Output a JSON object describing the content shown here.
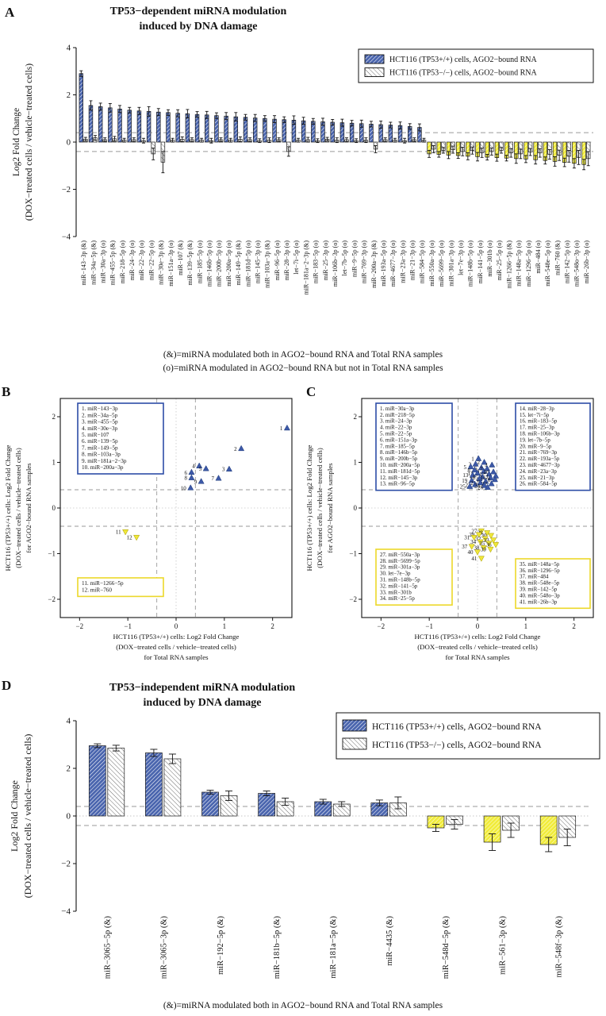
{
  "panels": {
    "a": "A",
    "b": "B",
    "c": "C",
    "d": "D"
  },
  "colors": {
    "blue": "#4a65ae",
    "yellow": "#f1ec3c",
    "white": "#ffffff",
    "hatch_white_line": "#6e6e6e",
    "box_blue": "#2d4da6",
    "box_yellow": "#ecd82a",
    "dash": "#9a9a9a",
    "dot": "#c6c6c6",
    "edge": "#1a1a1a",
    "marker_up": "#3d59a8",
    "marker_down": "#efe73a"
  },
  "panel_a": {
    "title_lines": [
      "TP53−dependent miRNA modulation",
      "induced by DNA damage"
    ],
    "ylabel_lines": [
      "Log2 Fold Change",
      "(DOX−treated cells / vehicle−treated cells)"
    ],
    "legend": [
      "HCT116 (TP53+/+) cells, AGO2−bound RNA",
      "HCT116 (TP53−/−) cells, AGO2−bound RNA"
    ],
    "footnotes": [
      "(&)=miRNA modulated both in AGO2−bound RNA and Total RNA samples",
      "(o)=miRNA modulated in AGO2−bound RNA but not in Total RNA samples"
    ],
    "yticks": [
      -4,
      -2,
      0,
      2,
      4
    ]
  },
  "panel_b": {
    "xlabel_lines": [
      "HCT116 (TP53+/+) cells: Log2 Fold Change",
      "(DOX−treated cells / vehicle−treated cells)",
      "for Total RNA samples"
    ],
    "ylabel_lines": [
      "HCT116 (TP53+/+) cells: Log2 Fold Change",
      "(DOX−treated cells / vehicle−treated cells)",
      "for AGO2−bound RNA samples"
    ]
  },
  "panel_c": {
    "xlabel_lines": [
      "HCT116 (TP53+/+) cells: Log2 Fold Change",
      "(DOX−treated cells / vehicle−treated cells)",
      "for Total RNA samples"
    ],
    "ylabel_lines": [
      "HCT116 (TP53+/+) cells: Log2 Fold Change",
      "(DOX−treated cells / vehicle−treated cells)",
      "for AGO2−bound RNA samples"
    ]
  },
  "panel_d": {
    "title_lines": [
      "TP53−independent miRNA modulation",
      "induced by DNA damage"
    ],
    "ylabel_lines": [
      "Log2 Fold Change",
      "(DOX−treated cells / vehicle−treated cells)"
    ],
    "legend": [
      "HCT116 (TP53+/+) cells, AGO2−bound RNA",
      "HCT116 (TP53−/−) cells, AGO2−bound RNA"
    ],
    "footnote": "(&)=miRNA modulated both in AGO2−bound RNA and Total RNA samples",
    "yticks": [
      -4,
      -2,
      0,
      2,
      4
    ]
  },
  "chart_data": [
    {
      "panel": "A",
      "type": "bar",
      "title": "TP53−dependent miRNA modulation induced by DNA damage",
      "ylabel": "Log2 Fold Change (DOX−treated cells / vehicle−treated cells)",
      "ylim": [
        -4,
        4
      ],
      "yticks": [
        -4,
        -2,
        0,
        2,
        4
      ],
      "thresholds": [
        0.4,
        -0.4
      ],
      "categories": [
        "miR−143−3p (&)",
        "miR−34a−5p (&)",
        "miR−30a−3p (o)",
        "miR−455−5p (&)",
        "miR−218−5p (o)",
        "miR−24−3p (o)",
        "miR−22−3p (o)",
        "miR−22−5p (o)",
        "miR−30e−3p (&)",
        "miR−151a−3p (o)",
        "miR−107 (&)",
        "miR−139−5p (&)",
        "miR−185−5p (o)",
        "miR−146b−5p (o)",
        "miR−200b−5p (o)",
        "miR−200a−5p (o)",
        "miR−149−5p (&)",
        "miR−181d−5p (o)",
        "miR−145−3p (o)",
        "miR−103a−3p (&)",
        "miR−96−5p (o)",
        "miR−28−3p (o)",
        "let−7i−5p (o)",
        "miR−181a−2−3p (&)",
        "miR−183−5p (o)",
        "miR−25−3p (o)",
        "miR−106b−3p (o)",
        "let−7b−5p (o)",
        "miR−9−5p (o)",
        "miR−769−3p (o)",
        "miR−200a−3p (&)",
        "miR−193a−5p (o)",
        "miR−4677−3p (o)",
        "miR−23a−3p (o)",
        "miR−21−3p (o)",
        "miR−584−5p (o)",
        "miR−550a−3p (o)",
        "miR−5699−5p (o)",
        "miR−301a−3p (o)",
        "let−7e−3p (o)",
        "miR−148b−5p (o)",
        "miR−141−5p (o)",
        "miR−301b (o)",
        "miR−25−5p (o)",
        "miR−1266−5p (&)",
        "miR−148a−5p (o)",
        "miR−1296−5p (o)",
        "miR−484 (o)",
        "miR−548e−5p (o)",
        "miR−760 (&)",
        "miR−142−5p (o)",
        "miR−548o−3p (o)",
        "miR−26b−3p (o)"
      ],
      "series": [
        {
          "name": "HCT116 (TP53+/+) cells, AGO2−bound RNA",
          "values": [
            2.9,
            1.55,
            1.5,
            1.45,
            1.4,
            1.35,
            1.32,
            1.3,
            1.27,
            1.25,
            1.22,
            1.2,
            1.17,
            1.15,
            1.12,
            1.1,
            1.07,
            1.05,
            1.02,
            1.0,
            0.97,
            0.95,
            0.93,
            0.9,
            0.88,
            0.86,
            0.84,
            0.82,
            0.8,
            0.78,
            0.76,
            0.74,
            0.72,
            0.7,
            0.66,
            0.62,
            -0.5,
            -0.52,
            -0.55,
            -0.57,
            -0.6,
            -0.62,
            -0.64,
            -0.66,
            -0.68,
            -0.7,
            -0.72,
            -0.75,
            -0.78,
            -0.82,
            -0.86,
            -0.9,
            -0.95
          ],
          "errors": [
            0.12,
            0.2,
            0.15,
            0.18,
            0.15,
            0.12,
            0.15,
            0.2,
            0.15,
            0.12,
            0.15,
            0.18,
            0.12,
            0.15,
            0.12,
            0.15,
            0.18,
            0.12,
            0.15,
            0.12,
            0.15,
            0.12,
            0.18,
            0.15,
            0.12,
            0.15,
            0.12,
            0.15,
            0.12,
            0.15,
            0.12,
            0.15,
            0.12,
            0.15,
            0.12,
            0.15,
            0.15,
            0.12,
            0.15,
            0.12,
            0.15,
            0.18,
            0.12,
            0.15,
            0.12,
            0.2,
            0.15,
            0.18,
            0.15,
            0.2,
            0.18,
            0.2,
            0.22
          ]
        },
        {
          "name": "HCT116 (TP53−/−) cells, AGO2−bound RNA",
          "values": [
            0.12,
            0.18,
            0.1,
            0.14,
            0.08,
            0.1,
            0.06,
            -0.5,
            -0.85,
            0.08,
            0.12,
            0.1,
            0.08,
            0.06,
            0.1,
            0.08,
            0.12,
            0.1,
            0.06,
            0.08,
            0.1,
            -0.4,
            0.08,
            0.1,
            0.06,
            0.12,
            0.08,
            0.1,
            0.06,
            0.08,
            -0.3,
            0.1,
            0.08,
            0.06,
            0.1,
            0.08,
            -0.3,
            -0.35,
            -0.32,
            -0.4,
            -0.36,
            -0.45,
            -0.4,
            -0.35,
            -0.46,
            -0.5,
            -0.42,
            -0.46,
            -0.52,
            -0.56,
            -0.6,
            -0.65,
            -0.7
          ],
          "errors": [
            0.08,
            0.1,
            0.08,
            0.1,
            0.08,
            0.08,
            0.1,
            0.25,
            0.45,
            0.08,
            0.1,
            0.08,
            0.08,
            0.1,
            0.08,
            0.08,
            0.1,
            0.08,
            0.08,
            0.1,
            0.08,
            0.2,
            0.08,
            0.1,
            0.08,
            0.08,
            0.1,
            0.08,
            0.08,
            0.1,
            0.15,
            0.08,
            0.08,
            0.1,
            0.08,
            0.08,
            0.15,
            0.12,
            0.15,
            0.18,
            0.15,
            0.2,
            0.15,
            0.12,
            0.18,
            0.2,
            0.15,
            0.18,
            0.2,
            0.22,
            0.25,
            0.3,
            0.3
          ]
        }
      ]
    },
    {
      "panel": "B",
      "type": "scatter",
      "xlabel": "HCT116 (TP53+/+) cells: Log2 Fold Change (DOX−treated cells / vehicle−treated cells) for Total RNA samples",
      "ylabel": "HCT116 (TP53+/+) cells: Log2 Fold Change (DOX−treated cells / vehicle−treated cells) for AGO2−bound RNA samples",
      "xlim": [
        -2.4,
        2.4
      ],
      "ylim": [
        -2.4,
        2.4
      ],
      "ticks": [
        -2,
        -1,
        0,
        1,
        2
      ],
      "thresholds": [
        0.4,
        -0.4
      ],
      "points": [
        {
          "n": 1,
          "name": "miR−143−3p",
          "x": 2.3,
          "y": 1.75,
          "dir": "up"
        },
        {
          "n": 2,
          "name": "miR−34a−5p",
          "x": 1.35,
          "y": 1.3,
          "dir": "up"
        },
        {
          "n": 3,
          "name": "miR−455−5p",
          "x": 1.1,
          "y": 0.85,
          "dir": "up"
        },
        {
          "n": 4,
          "name": "miR−30e−3p",
          "x": 0.48,
          "y": 0.92,
          "dir": "up"
        },
        {
          "n": 5,
          "name": "miR−107",
          "x": 0.62,
          "y": 0.86,
          "dir": "up"
        },
        {
          "n": 6,
          "name": "miR−139−5p",
          "x": 0.32,
          "y": 0.78,
          "dir": "up"
        },
        {
          "n": 7,
          "name": "miR−149−5p",
          "x": 0.88,
          "y": 0.65,
          "dir": "up"
        },
        {
          "n": 8,
          "name": "miR−103a−3p",
          "x": 0.32,
          "y": 0.66,
          "dir": "up"
        },
        {
          "n": 9,
          "name": "miR−181a−2−3p",
          "x": 0.52,
          "y": 0.58,
          "dir": "up"
        },
        {
          "n": 10,
          "name": "miR−200a−3p",
          "x": 0.3,
          "y": 0.44,
          "dir": "up"
        },
        {
          "n": 11,
          "name": "miR−1266−5p",
          "x": -1.05,
          "y": -0.52,
          "dir": "down"
        },
        {
          "n": 12,
          "name": "miR−760",
          "x": -0.82,
          "y": -0.64,
          "dir": "down"
        }
      ]
    },
    {
      "panel": "C",
      "type": "scatter",
      "xlabel": "HCT116 (TP53+/+) cells: Log2 Fold Change (DOX−treated cells / vehicle−treated cells) for Total RNA samples",
      "ylabel": "HCT116 (TP53+/+) cells: Log2 Fold Change (DOX−treated cells / vehicle−treated cells) for AGO2−bound RNA samples",
      "xlim": [
        -2.4,
        2.4
      ],
      "ylim": [
        -2.4,
        2.4
      ],
      "ticks": [
        -2,
        -1,
        0,
        1,
        2
      ],
      "thresholds": [
        0.4,
        -0.4
      ],
      "points": [
        {
          "n": 1,
          "name": "miR−30a−3p",
          "x": 0.02,
          "y": 1.08,
          "dir": "up"
        },
        {
          "n": 2,
          "name": "miR−218−5p",
          "x": 0.14,
          "y": 1.0,
          "dir": "up"
        },
        {
          "n": 3,
          "name": "miR−24−3p",
          "x": -0.04,
          "y": 0.96,
          "dir": "up"
        },
        {
          "n": 4,
          "name": "miR−22−3p",
          "x": 0.3,
          "y": 0.94,
          "dir": "up"
        },
        {
          "n": 5,
          "name": "miR−22−5p",
          "x": -0.14,
          "y": 0.9,
          "dir": "up"
        },
        {
          "n": 6,
          "name": "miR−151a−3p",
          "x": 0.08,
          "y": 0.88,
          "dir": "up"
        },
        {
          "n": 7,
          "name": "miR−185−5p",
          "x": 0.2,
          "y": 0.86,
          "dir": "up"
        },
        {
          "n": 8,
          "name": "miR−146b−5p",
          "x": -0.06,
          "y": 0.83,
          "dir": "up"
        },
        {
          "n": 9,
          "name": "miR−200b−5p",
          "x": 0.13,
          "y": 0.8,
          "dir": "up"
        },
        {
          "n": 10,
          "name": "miR−200a−5p",
          "x": 0.33,
          "y": 0.79,
          "dir": "up"
        },
        {
          "n": 11,
          "name": "miR−181d−5p",
          "x": 0.0,
          "y": 0.76,
          "dir": "up"
        },
        {
          "n": 12,
          "name": "miR−145−3p",
          "x": 0.24,
          "y": 0.74,
          "dir": "up"
        },
        {
          "n": 13,
          "name": "miR−96−5p",
          "x": -0.1,
          "y": 0.72,
          "dir": "up"
        },
        {
          "n": 14,
          "name": "miR−28−3p",
          "x": 0.38,
          "y": 0.7,
          "dir": "up"
        },
        {
          "n": 15,
          "name": "let−7i−5p",
          "x": 0.1,
          "y": 0.68,
          "dir": "up"
        },
        {
          "n": 16,
          "name": "miR−183−5p",
          "x": 0.27,
          "y": 0.66,
          "dir": "up"
        },
        {
          "n": 17,
          "name": "miR−25−3p",
          "x": 0.04,
          "y": 0.64,
          "dir": "up"
        },
        {
          "n": 18,
          "name": "miR−106b−3p",
          "x": 0.36,
          "y": 0.62,
          "dir": "up"
        },
        {
          "n": 19,
          "name": "let−7b−5p",
          "x": -0.12,
          "y": 0.6,
          "dir": "up"
        },
        {
          "n": 20,
          "name": "miR−9−5p",
          "x": 0.17,
          "y": 0.58,
          "dir": "up"
        },
        {
          "n": 21,
          "name": "miR−769−3p",
          "x": 0.06,
          "y": 0.55,
          "dir": "up"
        },
        {
          "n": 22,
          "name": "miR−193a−5p",
          "x": 0.29,
          "y": 0.53,
          "dir": "up"
        },
        {
          "n": 23,
          "name": "miR−4677−3p",
          "x": -0.05,
          "y": 0.51,
          "dir": "up"
        },
        {
          "n": 24,
          "name": "miR−23a−3p",
          "x": 0.14,
          "y": 0.49,
          "dir": "up"
        },
        {
          "n": 25,
          "name": "miR−21−3p",
          "x": -0.16,
          "y": 0.47,
          "dir": "up"
        },
        {
          "n": 26,
          "name": "miR−584−5p",
          "x": 0.21,
          "y": 0.45,
          "dir": "up"
        },
        {
          "n": 27,
          "name": "miR−550a−3p",
          "x": 0.08,
          "y": -0.5,
          "dir": "down"
        },
        {
          "n": 28,
          "name": "miR−5699−5p",
          "x": 0.2,
          "y": -0.54,
          "dir": "down"
        },
        {
          "n": 29,
          "name": "miR−301a−3p",
          "x": 0.03,
          "y": -0.58,
          "dir": "down"
        },
        {
          "n": 30,
          "name": "let−7e−3p",
          "x": 0.28,
          "y": -0.6,
          "dir": "down"
        },
        {
          "n": 31,
          "name": "miR−148b−5p",
          "x": -0.07,
          "y": -0.64,
          "dir": "down"
        },
        {
          "n": 32,
          "name": "miR−141−5p",
          "x": 0.16,
          "y": -0.67,
          "dir": "down"
        },
        {
          "n": 33,
          "name": "miR−301b",
          "x": 0.33,
          "y": -0.7,
          "dir": "down"
        },
        {
          "n": 34,
          "name": "miR−25−5p",
          "x": 0.06,
          "y": -0.74,
          "dir": "down"
        },
        {
          "n": 35,
          "name": "miR−148a−5p",
          "x": 0.24,
          "y": -0.77,
          "dir": "down"
        },
        {
          "n": 36,
          "name": "miR−1296−5p",
          "x": 0.38,
          "y": -0.8,
          "dir": "down"
        },
        {
          "n": 37,
          "name": "miR−484",
          "x": -0.12,
          "y": -0.84,
          "dir": "down"
        },
        {
          "n": 38,
          "name": "miR−548e−5p",
          "x": 0.13,
          "y": -0.87,
          "dir": "down"
        },
        {
          "n": 39,
          "name": "miR−142−5p",
          "x": 0.27,
          "y": -0.9,
          "dir": "down"
        },
        {
          "n": 40,
          "name": "miR−548o−3p",
          "x": 0.0,
          "y": -0.96,
          "dir": "down"
        },
        {
          "n": 41,
          "name": "miR−26b−3p",
          "x": 0.08,
          "y": -1.1,
          "dir": "down"
        }
      ]
    },
    {
      "panel": "D",
      "type": "bar",
      "title": "TP53−independent miRNA modulation induced by DNA damage",
      "ylabel": "Log2 Fold Change (DOX−treated cells / vehicle−treated cells)",
      "ylim": [
        -4,
        4
      ],
      "yticks": [
        -4,
        -2,
        0,
        2,
        4
      ],
      "thresholds": [
        0.4,
        -0.4
      ],
      "categories": [
        "miR−3065−5p (&)",
        "miR−3065−3p (&)",
        "miR−192−5p (&)",
        "miR−181b−5p (&)",
        "miR−181a−5p (&)",
        "miR−4435 (&)",
        "miR−548d−5p (&)",
        "miR−561−3p (&)",
        "miR−548f−3p (&)"
      ],
      "series": [
        {
          "name": "HCT116 (TP53+/+) cells, AGO2−bound RNA",
          "values": [
            2.95,
            2.65,
            1.0,
            0.95,
            0.6,
            0.55,
            -0.5,
            -1.1,
            -1.2
          ],
          "errors": [
            0.08,
            0.15,
            0.08,
            0.1,
            0.1,
            0.12,
            0.15,
            0.35,
            0.3
          ]
        },
        {
          "name": "HCT116 (TP53−/−) cells, AGO2−bound RNA",
          "values": [
            2.85,
            2.4,
            0.85,
            0.6,
            0.5,
            0.55,
            -0.35,
            -0.6,
            -0.9
          ],
          "errors": [
            0.12,
            0.2,
            0.2,
            0.15,
            0.1,
            0.25,
            0.2,
            0.3,
            0.35
          ]
        }
      ]
    }
  ]
}
